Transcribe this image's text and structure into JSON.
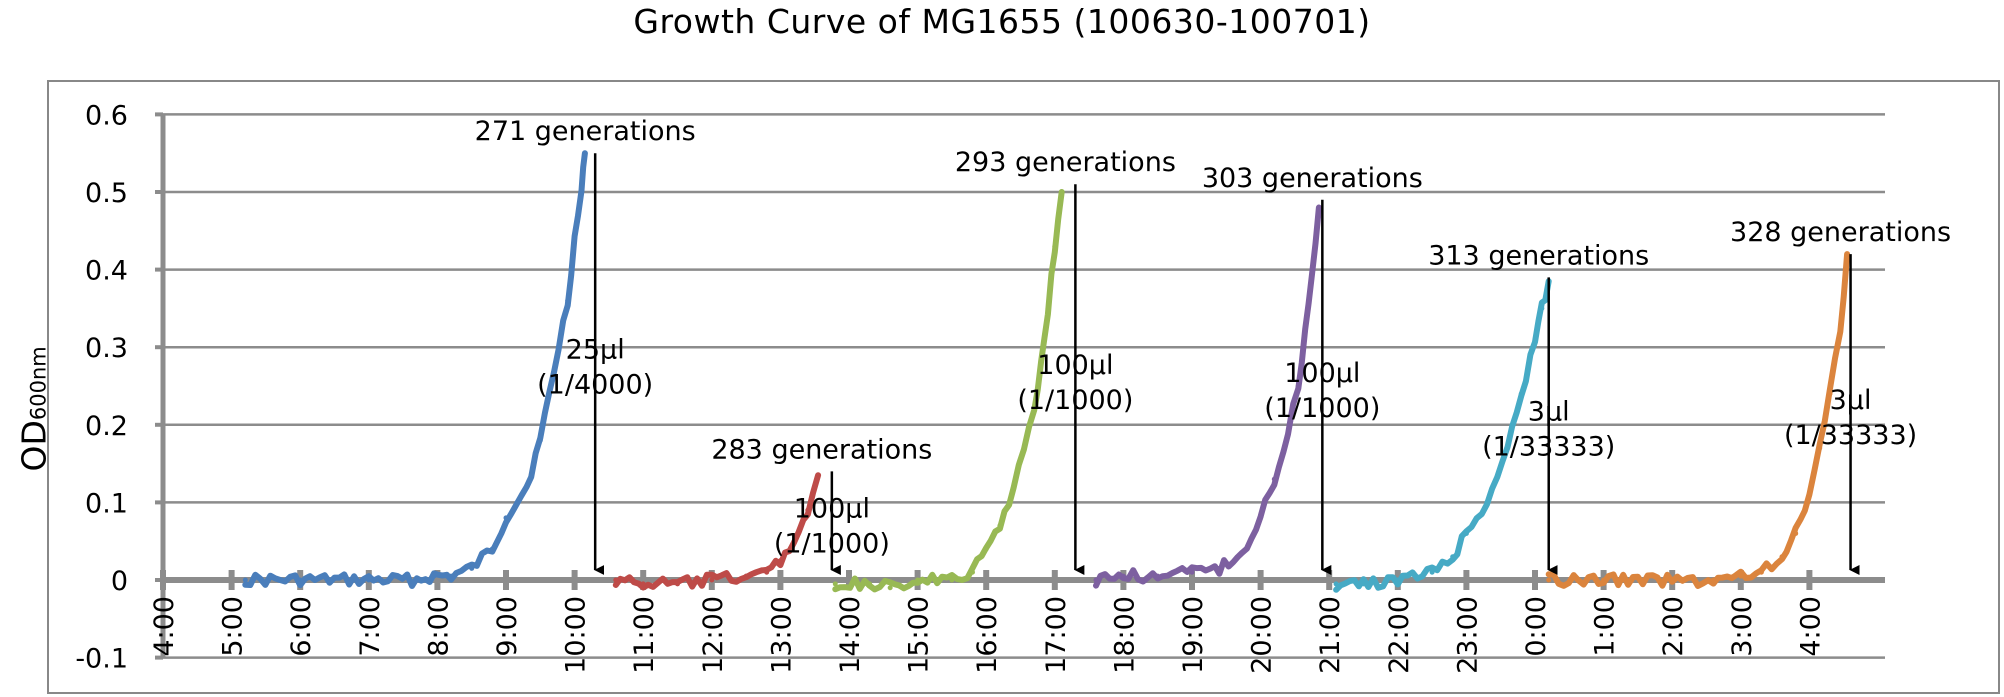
{
  "chart_data": {
    "type": "line",
    "title": "Growth Curve of MG1655 (100630-100701)",
    "ylabel": {
      "main": "OD",
      "sub": "600nm"
    },
    "xlabel": "",
    "ylim": [
      -0.1,
      0.6
    ],
    "y_ticks": [
      "-0.1",
      "0",
      "0.1",
      "0.2",
      "0.3",
      "0.4",
      "0.5",
      "0.6"
    ],
    "x_ticks": [
      "4:00",
      "5:00",
      "6:00",
      "7:00",
      "8:00",
      "9:00",
      "10:00",
      "11:00",
      "12:00",
      "13:00",
      "14:00",
      "15:00",
      "16:00",
      "17:00",
      "18:00",
      "19:00",
      "20:00",
      "21:00",
      "22:00",
      "23:00",
      "0:00",
      "1:00",
      "2:00",
      "3:00",
      "4:00"
    ],
    "x_unit": "hours after 4:00 (Jun 30)",
    "grid": true,
    "series": [
      {
        "color": "#4A7EBB",
        "x": [
          1.2,
          2.0,
          3.0,
          3.7,
          3.95,
          4.2,
          4.5,
          4.8,
          5.0,
          5.3,
          5.5,
          5.7,
          5.9,
          6.0,
          6.1,
          6.15
        ],
        "y": [
          0.0,
          0.0,
          0.0,
          0.0,
          0.005,
          0.005,
          0.015,
          0.04,
          0.08,
          0.12,
          0.18,
          0.27,
          0.36,
          0.44,
          0.5,
          0.55
        ]
      },
      {
        "color": "#BE4B48",
        "x": [
          6.6,
          7.0,
          7.5,
          8.0,
          8.5,
          8.8,
          9.0,
          9.2,
          9.4,
          9.55
        ],
        "y": [
          0.0,
          -0.005,
          -0.005,
          0.0,
          0.005,
          0.01,
          0.025,
          0.05,
          0.09,
          0.135
        ]
      },
      {
        "color": "#98B954",
        "x": [
          9.8,
          10.3,
          10.6,
          11.0,
          11.5,
          11.8,
          12.0,
          12.2,
          12.4,
          12.55,
          12.7,
          12.8,
          12.9,
          13.0,
          13.1
        ],
        "y": [
          -0.005,
          -0.005,
          -0.01,
          0.0,
          0.0,
          0.01,
          0.04,
          0.07,
          0.12,
          0.17,
          0.22,
          0.28,
          0.35,
          0.43,
          0.5
        ]
      },
      {
        "color": "#7D60A0",
        "x": [
          13.6,
          14.0,
          14.5,
          15.0,
          15.4,
          15.8,
          16.0,
          16.2,
          16.4,
          16.55,
          16.65,
          16.75,
          16.85
        ],
        "y": [
          0.0,
          0.005,
          0.005,
          0.01,
          0.015,
          0.04,
          0.08,
          0.13,
          0.19,
          0.25,
          0.32,
          0.4,
          0.48
        ]
      },
      {
        "color": "#46AAC5",
        "x": [
          17.1,
          17.5,
          18.0,
          18.5,
          18.8,
          19.0,
          19.3,
          19.6,
          19.8,
          20.0,
          20.1,
          20.2
        ],
        "y": [
          -0.005,
          -0.005,
          0.0,
          0.01,
          0.03,
          0.06,
          0.1,
          0.17,
          0.24,
          0.31,
          0.35,
          0.385
        ]
      },
      {
        "color": "#DB843D",
        "x": [
          20.2,
          21.0,
          22.0,
          22.6,
          23.0,
          23.3,
          23.6,
          23.8,
          24.0,
          24.15,
          24.3,
          24.45,
          24.55
        ],
        "y": [
          0.0,
          0.0,
          0.0,
          0.0,
          0.005,
          0.01,
          0.03,
          0.06,
          0.11,
          0.17,
          0.24,
          0.32,
          0.42
        ]
      }
    ],
    "annotations": [
      {
        "label": "271 generations",
        "arrow_x": 6.3,
        "arrow_top": 0.55,
        "dilution": [
          "25μl",
          "(1/4000)"
        ]
      },
      {
        "label": "283 generations",
        "arrow_x": 9.75,
        "arrow_top": 0.14,
        "dilution": [
          "100μl",
          "(1/1000)"
        ]
      },
      {
        "label": "293 generations",
        "arrow_x": 13.3,
        "arrow_top": 0.51,
        "dilution": [
          "100μl",
          "(1/1000)"
        ]
      },
      {
        "label": "303 generations",
        "arrow_x": 16.9,
        "arrow_top": 0.49,
        "dilution": [
          "100μl",
          "(1/1000)"
        ]
      },
      {
        "label": "313 generations",
        "arrow_x": 20.2,
        "arrow_top": 0.39,
        "dilution": [
          "3μl",
          "(1/33333)"
        ]
      },
      {
        "label": "328 generations",
        "arrow_x": 24.6,
        "arrow_top": 0.42,
        "dilution": [
          "3μl",
          "(1/33333)"
        ]
      }
    ]
  }
}
